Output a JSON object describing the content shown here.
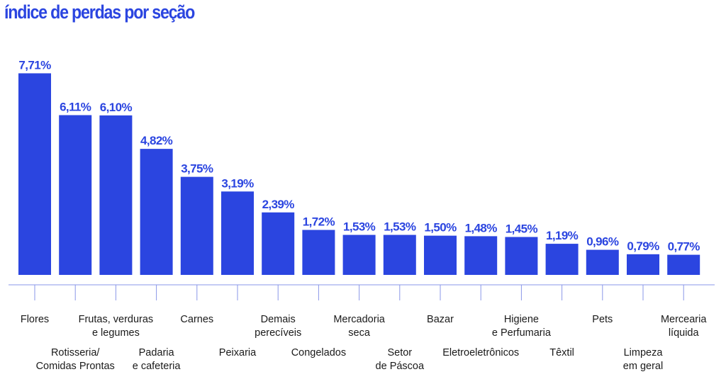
{
  "colors": {
    "accent": "#2b45e0",
    "text": "#1a1a1a",
    "tick": "#8a97e8"
  },
  "chart_data": {
    "type": "bar",
    "title": "índice de perdas por seção",
    "xlabel": "",
    "ylabel": "",
    "ylim": [
      0,
      8.4
    ],
    "grid": false,
    "categories": [
      "Flores",
      "Rotisseria/ Comidas Prontas",
      "Frutas, verduras e legumes",
      "Padaria e cafeteria",
      "Carnes",
      "Peixaria",
      "Demais perecíveis",
      "Congelados",
      "Mercadoria seca",
      "Setor de Páscoa",
      "Bazar",
      "Eletroeletrônicos",
      "Higiene e Perfumaria",
      "Têxtil",
      "Pets",
      "Limpeza em geral",
      "Mercearia líquida"
    ],
    "category_lines": [
      [
        "Flores"
      ],
      [
        "Rotisseria/",
        "Comidas Prontas"
      ],
      [
        "Frutas, verduras",
        "e legumes"
      ],
      [
        "Padaria",
        "e cafeteria"
      ],
      [
        "Carnes"
      ],
      [
        "Peixaria"
      ],
      [
        "Demais",
        "perecíveis"
      ],
      [
        "Congelados"
      ],
      [
        "Mercadoria",
        "seca"
      ],
      [
        "Setor",
        "de Páscoa"
      ],
      [
        "Bazar"
      ],
      [
        "Eletroeletrônicos"
      ],
      [
        "Higiene",
        "e Perfumaria"
      ],
      [
        "Têxtil"
      ],
      [
        "Pets"
      ],
      [
        "Limpeza",
        "em geral"
      ],
      [
        "Mercearia",
        "líquida"
      ]
    ],
    "values": [
      7.71,
      6.11,
      6.1,
      4.82,
      3.75,
      3.19,
      2.39,
      1.72,
      1.53,
      1.53,
      1.5,
      1.48,
      1.45,
      1.19,
      0.96,
      0.79,
      0.77
    ],
    "value_labels": [
      "7,71%",
      "6,11%",
      "6,10%",
      "4,82%",
      "3,75%",
      "3,19%",
      "2,39%",
      "1,72%",
      "1,53%",
      "1,53%",
      "1,50%",
      "1,48%",
      "1,45%",
      "1,19%",
      "0,96%",
      "0,79%",
      "0,77%"
    ],
    "label_level": [
      "upper",
      "lower",
      "upper",
      "lower",
      "upper",
      "lower",
      "upper",
      "lower",
      "upper",
      "lower",
      "upper",
      "lower",
      "upper",
      "lower",
      "upper",
      "lower",
      "upper"
    ]
  }
}
